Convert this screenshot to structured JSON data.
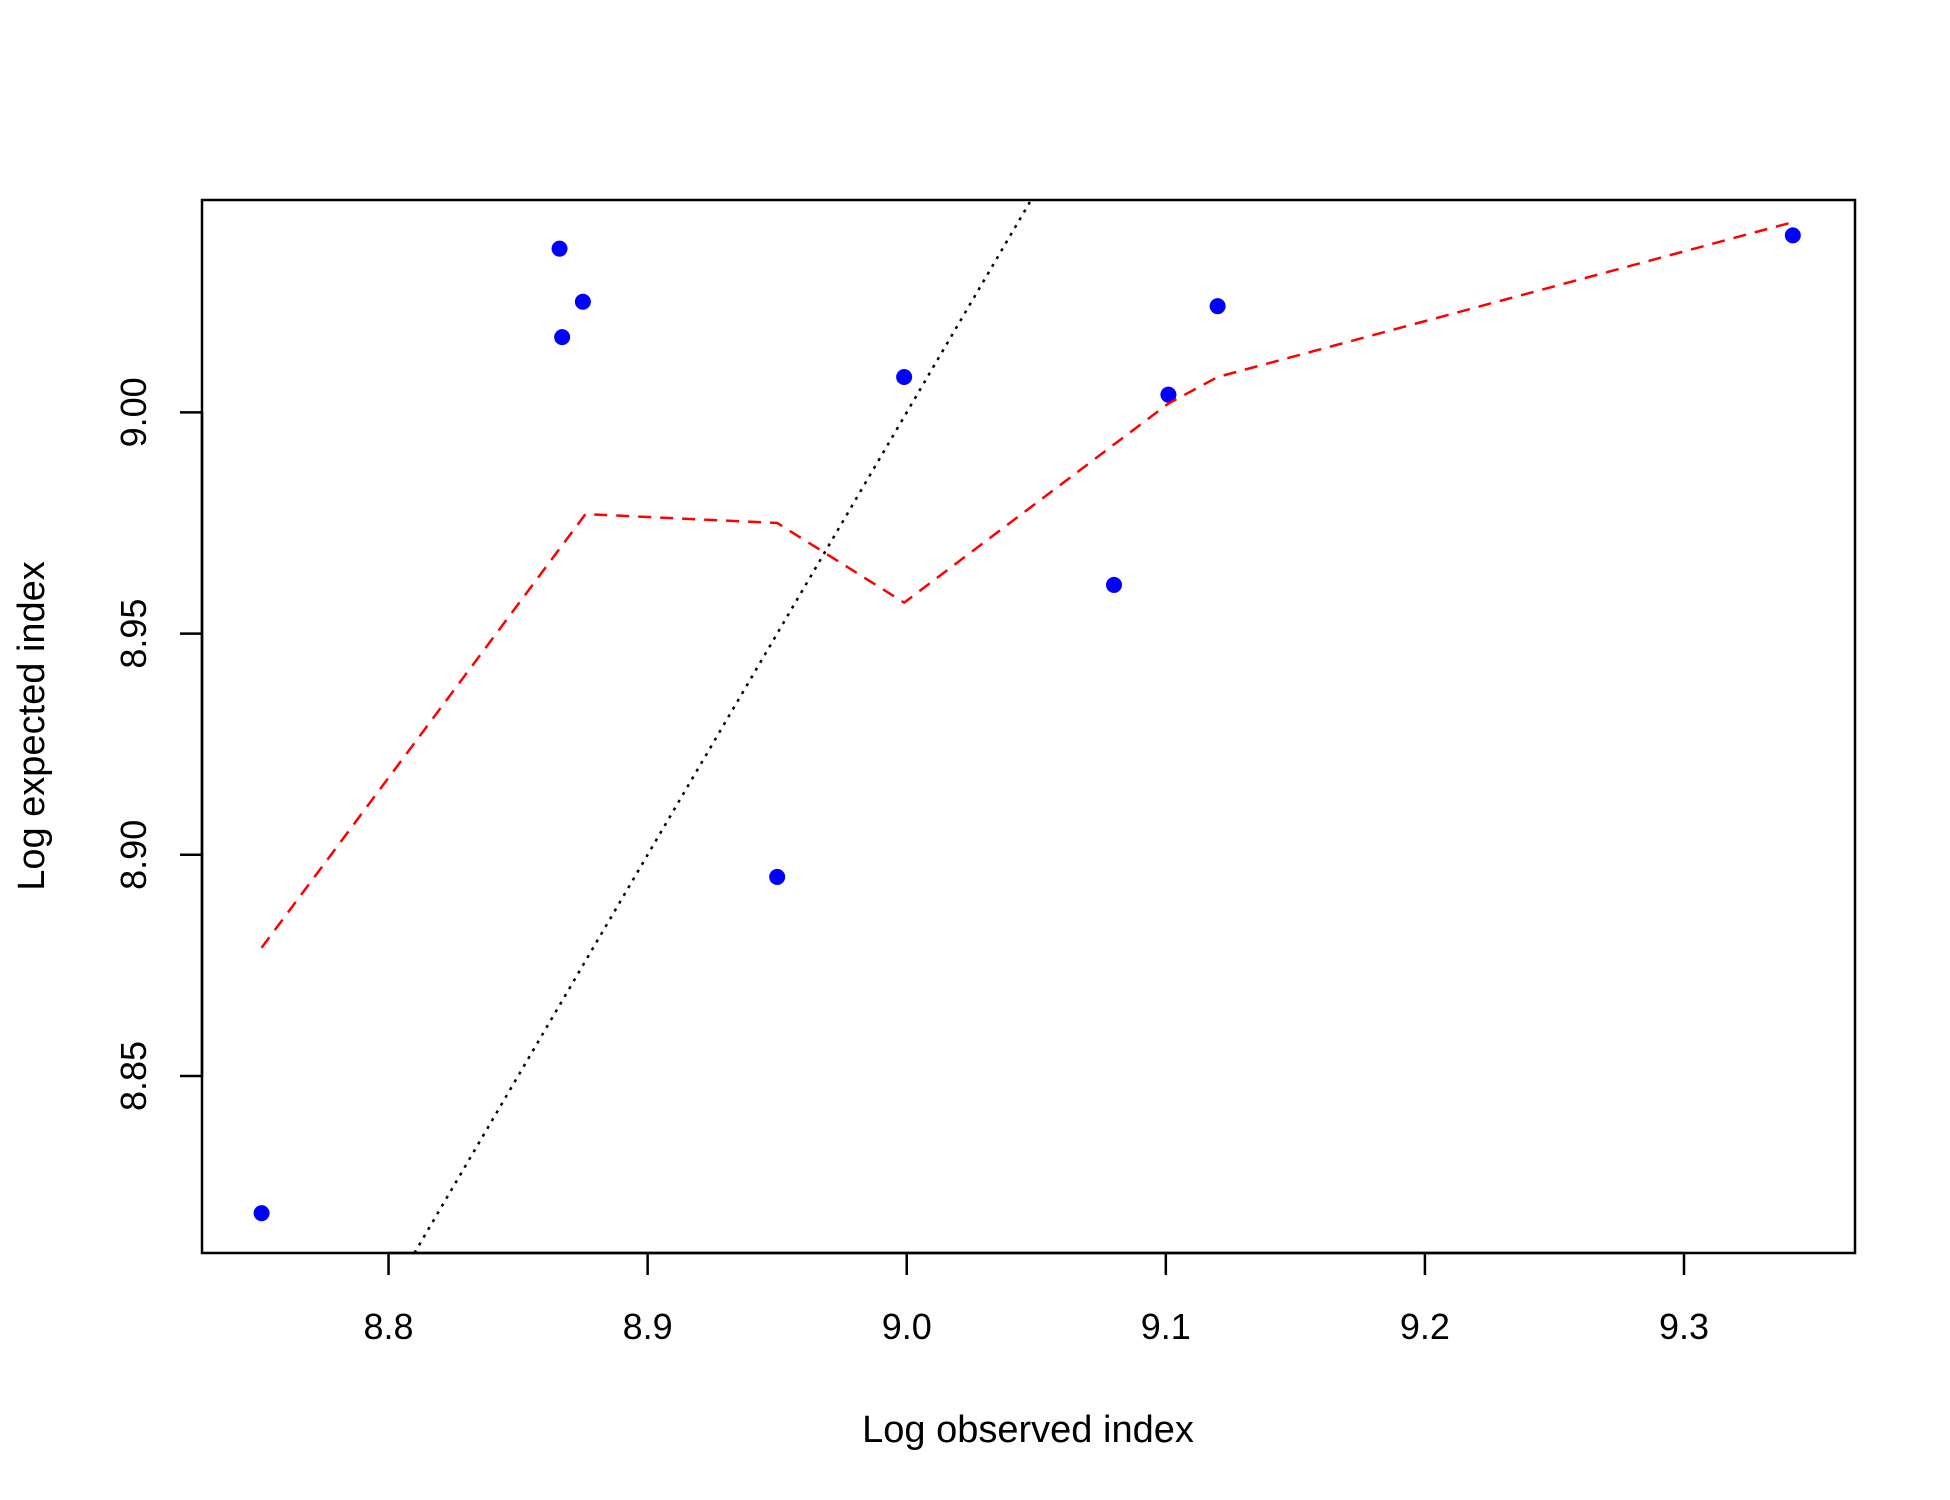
{
  "chart_data": {
    "type": "scatter",
    "title": "",
    "xlabel": "Log observed index",
    "ylabel": "Log expected index",
    "xlim": [
      8.728,
      9.366
    ],
    "ylim": [
      8.81,
      9.048
    ],
    "x_ticks": [
      8.8,
      8.9,
      9.0,
      9.1,
      9.2,
      9.3
    ],
    "x_tick_labels": [
      "8.8",
      "8.9",
      "9.0",
      "9.1",
      "9.2",
      "9.3"
    ],
    "y_ticks": [
      8.85,
      8.9,
      8.95,
      9.0
    ],
    "y_tick_labels": [
      "8.85",
      "8.90",
      "8.95",
      "9.00"
    ],
    "grid": false,
    "series": [
      {
        "kind": "points",
        "color": "#0000ff",
        "x": [
          8.751,
          8.866,
          8.867,
          8.875,
          8.95,
          8.999,
          9.08,
          9.101,
          9.12,
          9.342
        ],
        "y": [
          8.819,
          9.037,
          9.017,
          9.025,
          8.895,
          9.008,
          8.961,
          9.004,
          9.024,
          9.04
        ]
      },
      {
        "kind": "dashed-line",
        "color": "#ff0000",
        "x": [
          8.751,
          8.876,
          8.95,
          8.999,
          9.101,
          9.12,
          9.342
        ],
        "y": [
          8.879,
          8.977,
          8.975,
          8.957,
          9.002,
          9.008,
          9.043
        ]
      },
      {
        "kind": "dotted-line",
        "color": "#000000",
        "x": [
          8.81,
          9.048
        ],
        "y": [
          8.81,
          9.048
        ]
      }
    ]
  }
}
